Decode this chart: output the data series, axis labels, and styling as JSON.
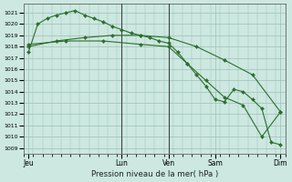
{
  "title": "Pression niveau de la mer( hPa )",
  "bg_color": "#cce8e0",
  "grid_color": "#9dbfb8",
  "line_color": "#2d6e2d",
  "marker_color": "#2d6e2d",
  "ylim": [
    1008.5,
    1021.8
  ],
  "yticks": [
    1009,
    1010,
    1011,
    1012,
    1013,
    1014,
    1015,
    1016,
    1017,
    1018,
    1019,
    1020,
    1021
  ],
  "xtick_labels": [
    "Jeu",
    "Lun",
    "Ven",
    "Sam",
    "Dim"
  ],
  "xtick_positions": [
    0,
    10,
    15,
    20,
    27
  ],
  "xlim": [
    -0.5,
    27.5
  ],
  "vline_positions": [
    10,
    15
  ],
  "vline_color": "#444444",
  "series1_x": [
    0,
    1,
    2,
    3,
    4,
    5,
    6,
    7,
    8,
    9,
    10,
    11,
    12,
    13,
    14,
    15,
    16,
    17,
    18,
    19,
    20,
    21,
    22,
    23,
    24,
    25,
    26,
    27
  ],
  "series1_y": [
    1017.5,
    1020.0,
    1020.5,
    1020.8,
    1021.0,
    1021.2,
    1020.8,
    1020.5,
    1020.2,
    1019.8,
    1019.5,
    1019.2,
    1019.0,
    1018.8,
    1018.5,
    1018.3,
    1017.5,
    1016.5,
    1015.5,
    1014.5,
    1013.3,
    1013.1,
    1014.2,
    1014.0,
    1013.3,
    1012.5,
    1009.5,
    1009.3
  ],
  "series2_x": [
    0,
    3,
    6,
    9,
    12,
    15,
    18,
    21,
    24,
    27
  ],
  "series2_y": [
    1018.0,
    1018.5,
    1018.8,
    1019.0,
    1019.0,
    1018.8,
    1018.0,
    1016.8,
    1015.5,
    1012.2
  ],
  "series3_x": [
    0,
    4,
    8,
    12,
    15,
    17,
    19,
    21,
    23,
    25,
    27
  ],
  "series3_y": [
    1018.2,
    1018.5,
    1018.5,
    1018.2,
    1018.0,
    1016.5,
    1015.0,
    1013.5,
    1012.8,
    1010.0,
    1012.2
  ]
}
